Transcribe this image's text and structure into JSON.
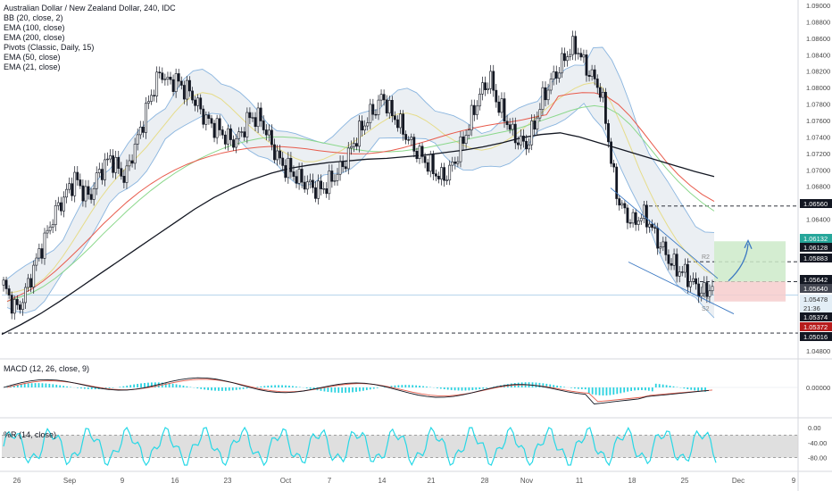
{
  "chart_data": {
    "type": "line",
    "title": "Australian Dollar / New Zealand Dollar, 240, IDC",
    "main_indicators": [
      "BB (20, close, 2)",
      "EMA (100, close)",
      "EMA (200, close)",
      "Pivots (Classic, Daily, 15)",
      "EMA (50, close)",
      "EMA (21, close)"
    ],
    "price_axis_ticks": [
      "1.09000",
      "1.08800",
      "1.08600",
      "1.08400",
      "1.08200",
      "1.08000",
      "1.07800",
      "1.07600",
      "1.07400",
      "1.07200",
      "1.07000",
      "1.06800",
      "1.06400",
      "1.04800"
    ],
    "price_tags": [
      {
        "value": "1.06560",
        "bg": "#131722",
        "fg": "#ffffff"
      },
      {
        "value": "1.06132",
        "bg": "#26a69a",
        "fg": "#ffffff"
      },
      {
        "value": "1.06128",
        "bg": "#131722",
        "fg": "#ffffff"
      },
      {
        "value": "1.05883",
        "bg": "#131722",
        "fg": "#ffffff"
      },
      {
        "value": "1.05642",
        "bg": "#131722",
        "fg": "#ffffff"
      },
      {
        "value": "1.05640",
        "bg": "#434651",
        "fg": "#ffffff"
      },
      {
        "value": "1.05478",
        "bg": "#e3eef6",
        "fg": "#333333"
      },
      {
        "value": "21:36",
        "bg": "#e3eef6",
        "fg": "#333333"
      },
      {
        "value": "1.05374",
        "bg": "#131722",
        "fg": "#ffffff"
      },
      {
        "value": "1.05372",
        "bg": "#b71c1c",
        "fg": "#ffffff"
      },
      {
        "value": "1.05016",
        "bg": "#131722",
        "fg": "#ffffff"
      }
    ],
    "pivot_labels": [
      "R2",
      "P",
      "S1",
      "S2"
    ],
    "x_tick_labels": [
      "26",
      "Sep",
      "9",
      "16",
      "23",
      "Oct",
      "7",
      "14",
      "21",
      "28",
      "Nov",
      "11",
      "18",
      "25",
      "Dec",
      "9"
    ],
    "close_series": [
      1.056,
      1.054,
      1.053,
      1.055,
      1.0575,
      1.06,
      1.062,
      1.0645,
      1.066,
      1.0675,
      1.069,
      1.0675,
      1.0665,
      1.069,
      1.0705,
      1.0715,
      1.07,
      1.069,
      1.072,
      1.0745,
      1.0775,
      1.08,
      1.082,
      1.0805,
      1.081,
      1.08,
      1.0795,
      1.078,
      1.0765,
      1.0755,
      1.075,
      1.074,
      1.0735,
      1.074,
      1.076,
      1.0765,
      1.076,
      1.074,
      1.072,
      1.0705,
      1.07,
      1.069,
      1.0685,
      1.068,
      1.0675,
      1.068,
      1.069,
      1.07,
      1.0715,
      1.0735,
      1.075,
      1.0765,
      1.0775,
      1.079,
      1.077,
      1.076,
      1.0745,
      1.073,
      1.072,
      1.071,
      1.07,
      1.069,
      1.0695,
      1.071,
      1.073,
      1.0755,
      1.078,
      1.08,
      1.081,
      1.078,
      1.0765,
      1.0745,
      1.0735,
      1.073,
      1.075,
      1.078,
      1.08,
      1.0815,
      1.083,
      1.0845,
      1.085,
      1.083,
      1.0815,
      1.0805,
      1.077,
      1.07,
      1.066,
      1.0645,
      1.0635,
      1.0645,
      1.064,
      1.062,
      1.0605,
      1.059,
      1.058,
      1.0575,
      1.0565,
      1.0555,
      1.055,
      1.056
    ],
    "ema21_series": [
      1.055,
      1.0552,
      1.0555,
      1.056,
      1.0568,
      1.058,
      1.0595,
      1.0612,
      1.063,
      1.0648,
      1.0665,
      1.068,
      1.0693,
      1.0705,
      1.0716,
      1.0728,
      1.0742,
      1.0756,
      1.077,
      1.0782,
      1.079,
      1.0794,
      1.0792,
      1.0786,
      1.0776,
      1.0765,
      1.0754,
      1.0744,
      1.0735,
      1.0727,
      1.072,
      1.0714,
      1.071,
      1.071,
      1.0713,
      1.0718,
      1.0724,
      1.0732,
      1.074,
      1.0748,
      1.0756,
      1.0763,
      1.0768,
      1.0769,
      1.0766,
      1.076,
      1.0752,
      1.0743,
      1.0736,
      1.073,
      1.0726,
      1.0724,
      1.0726,
      1.0731,
      1.0738,
      1.0746,
      1.0755,
      1.0765,
      1.0775,
      1.0784,
      1.0792,
      1.0799,
      1.0804,
      1.0806,
      1.08,
      1.078,
      1.0755,
      1.0728,
      1.07,
      1.0675,
      1.0652,
      1.0632,
      1.0614,
      1.06,
      1.0588,
      1.0578,
      1.0572
    ],
    "ema50_series": [
      1.054,
      1.0545,
      1.055,
      1.0558,
      1.0568,
      1.058,
      1.0593,
      1.0607,
      1.0622,
      1.0636,
      1.065,
      1.0663,
      1.0675,
      1.0686,
      1.0696,
      1.0705,
      1.0713,
      1.072,
      1.0726,
      1.0731,
      1.0735,
      1.0738,
      1.074,
      1.074,
      1.0739,
      1.0737,
      1.0734,
      1.0731,
      1.0728,
      1.0725,
      1.0723,
      1.0722,
      1.0722,
      1.0723,
      1.0725,
      1.0727,
      1.073,
      1.0733,
      1.0736,
      1.0739,
      1.0742,
      1.0745,
      1.0748,
      1.0752,
      1.0757,
      1.0762,
      1.0767,
      1.0772,
      1.0776,
      1.0778,
      1.0776,
      1.0768,
      1.0755,
      1.0738,
      1.072,
      1.0702,
      1.0686,
      1.0672,
      1.066,
      1.065
    ],
    "ema200_series": [
      1.05,
      1.0512,
      1.0525,
      1.054,
      1.0556,
      1.0572,
      1.0588,
      1.0604,
      1.062,
      1.0636,
      1.0652,
      1.0666,
      1.0678,
      1.0688,
      1.0696,
      1.0702,
      1.0706,
      1.0709,
      1.0711,
      1.0713,
      1.0714,
      1.0716,
      1.0718,
      1.0721,
      1.0724,
      1.0728,
      1.0733,
      1.0739,
      1.0743,
      1.0745,
      1.074,
      1.0733,
      1.0726,
      1.0719,
      1.0712,
      1.0705,
      1.0698,
      1.0692
    ],
    "macd": {
      "label": "MACD (12, 26, close, 9)",
      "ticks": [
        "0.00000"
      ]
    },
    "rsi": {
      "label": "%R (14, close)",
      "ticks": [
        "0.00",
        "-40.00",
        "-80.00"
      ]
    }
  },
  "colors": {
    "bb_band": "#8ab5df",
    "bb_fill": "#e9edf2",
    "ema21": "#e6dc8a",
    "ema50": "#8bd88b",
    "ema100": "#e85b4c",
    "ema200": "#131722",
    "candle": "#131722",
    "macd_hist": "#29d2e0",
    "macd_line": "#131722",
    "signal_line": "#e35b4a",
    "wr_line": "#26d8e6",
    "wr_band": "#d4d4d4",
    "long_green": "#cdeac9",
    "long_red": "#f6cdcd",
    "trend_blue": "#3b78c2"
  }
}
